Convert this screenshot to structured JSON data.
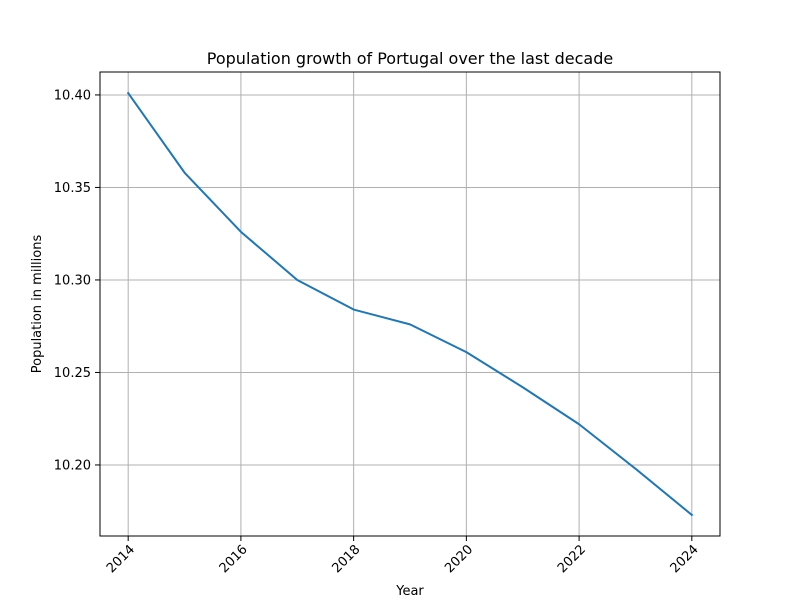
{
  "chart_data": {
    "type": "line",
    "title": "Population growth of Portugal over the last decade",
    "xlabel": "Year",
    "ylabel": "Population in millions",
    "x": [
      2014,
      2015,
      2016,
      2017,
      2018,
      2019,
      2020,
      2021,
      2022,
      2023,
      2024
    ],
    "series": [
      {
        "values": [
          10.401,
          10.358,
          10.326,
          10.3,
          10.284,
          10.276,
          10.261,
          10.242,
          10.222,
          10.198,
          10.173
        ],
        "color": "#1f77b4"
      }
    ],
    "xlim": [
      2013.5,
      2024.5
    ],
    "ylim": [
      10.1616,
      10.4124
    ],
    "xticks": [
      "2014",
      "2016",
      "2018",
      "2020",
      "2022",
      "2024"
    ],
    "yticks": [
      "10.20",
      "10.25",
      "10.30",
      "10.35",
      "10.40"
    ],
    "grid": true,
    "x_tick_rotation": "45 degrees"
  }
}
